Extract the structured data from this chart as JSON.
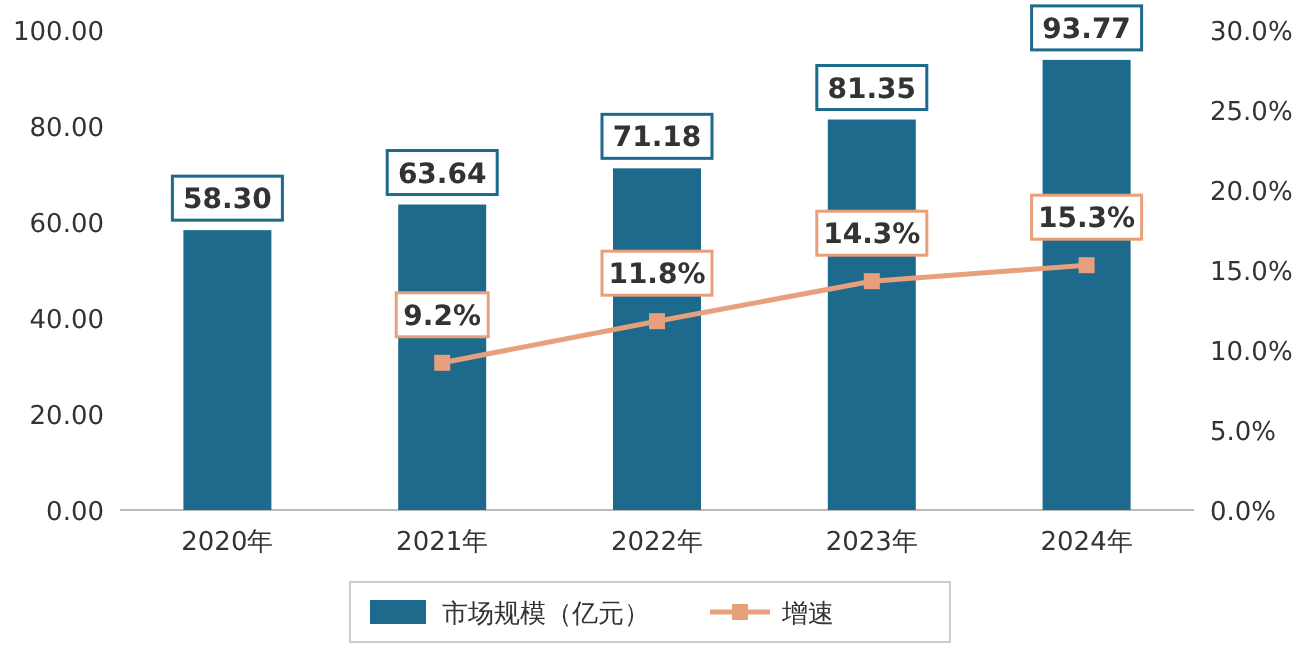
{
  "chart_data": {
    "type": "bar",
    "categories": [
      "2020年",
      "2021年",
      "2022年",
      "2023年",
      "2024年"
    ],
    "series": [
      {
        "name": "市场规模（亿元）",
        "color": "#1d6a8c",
        "values": [
          58.3,
          63.64,
          71.18,
          81.35,
          93.77
        ],
        "value_labels": [
          "58.30",
          "63.64",
          "71.18",
          "81.35",
          "93.77"
        ]
      },
      {
        "name": "增速",
        "type": "line",
        "axis": "y2",
        "color": "#e8a07c",
        "marker": "square",
        "values": [
          null,
          9.2,
          11.8,
          14.3,
          15.3
        ],
        "value_labels": [
          null,
          "9.2%",
          "11.8%",
          "14.3%",
          "15.3%"
        ]
      }
    ],
    "ylim": [
      0,
      100
    ],
    "yticks": [
      {
        "value": 0,
        "label": "0.00"
      },
      {
        "value": 20,
        "label": "20.00"
      },
      {
        "value": 40,
        "label": "40.00"
      },
      {
        "value": 60,
        "label": "60.00"
      },
      {
        "value": 80,
        "label": "80.00"
      },
      {
        "value": 100,
        "label": "100.00"
      }
    ],
    "y2lim": [
      0,
      30
    ],
    "y2ticks": [
      {
        "value": 0,
        "label": "0.0%"
      },
      {
        "value": 5,
        "label": "5.0%"
      },
      {
        "value": 10,
        "label": "10.0%"
      },
      {
        "value": 15,
        "label": "15.0%"
      },
      {
        "value": 20,
        "label": "20.0%"
      },
      {
        "value": 25,
        "label": "25.0%"
      },
      {
        "value": 30,
        "label": "30.0%"
      }
    ],
    "legend": "bottom"
  }
}
